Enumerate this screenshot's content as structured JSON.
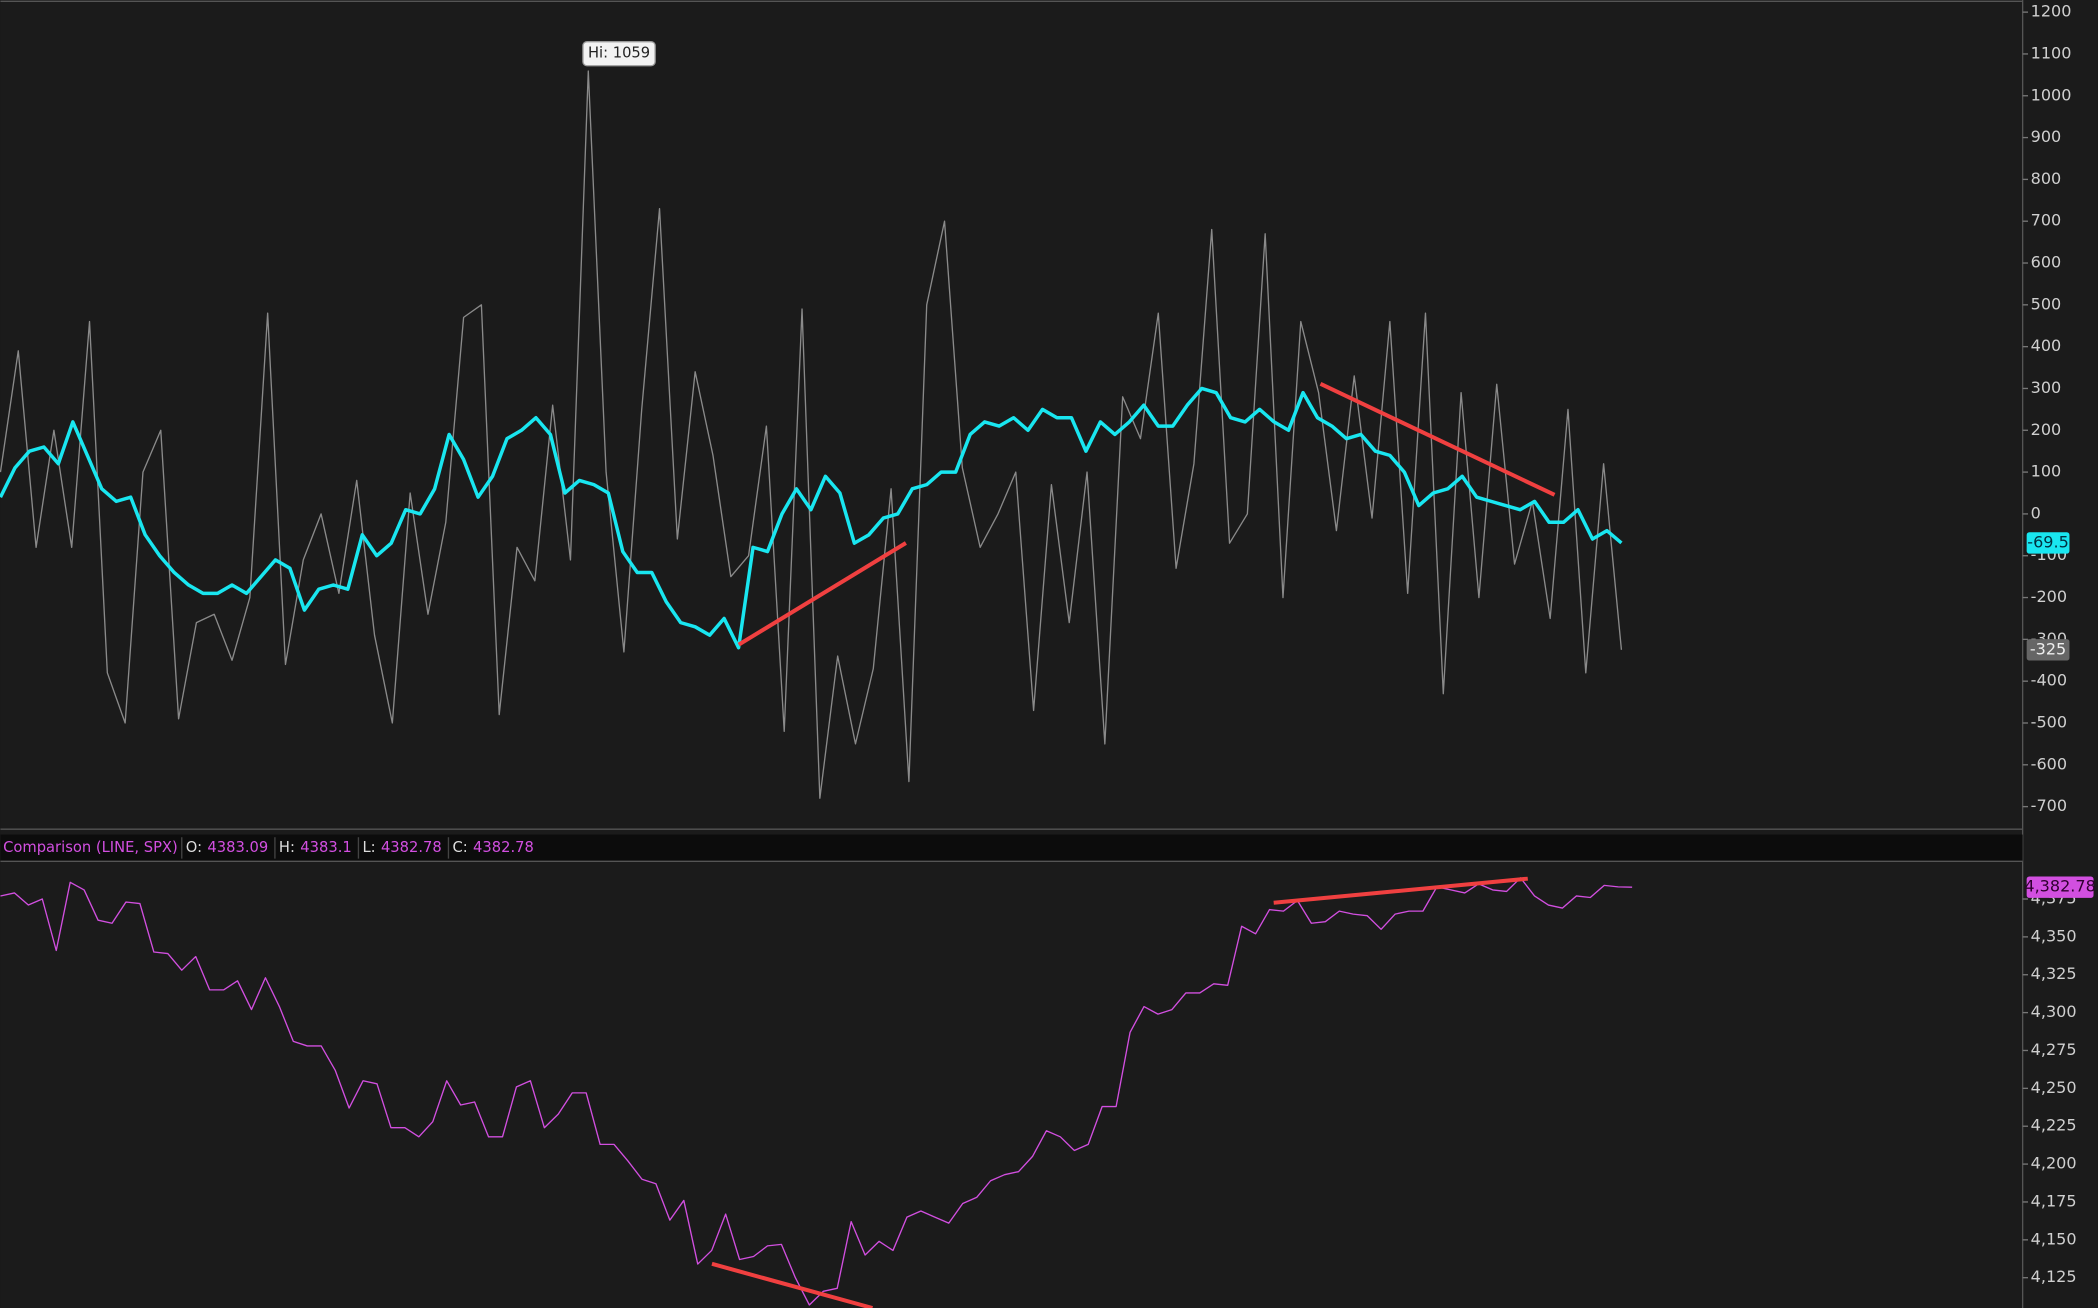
{
  "chart_data": [
    {
      "type": "line",
      "annotations": [
        {
          "text": "Hi: 1059"
        }
      ],
      "ylim": [
        -754,
        1229
      ],
      "yticks": [
        1200,
        1100,
        1000,
        900,
        800,
        700,
        600,
        500,
        400,
        300,
        200,
        100,
        0,
        -100,
        -200,
        -300,
        -400,
        -500,
        -600,
        -700
      ],
      "series": [
        {
          "color": "#8a8a8a",
          "values": [
            100,
            390,
            -80,
            200,
            -80,
            460,
            -380,
            -500,
            100,
            200,
            -490,
            -260,
            -240,
            -350,
            -200,
            480,
            -360,
            -110,
            0,
            -190,
            80,
            -290,
            -500,
            50,
            -240,
            -20,
            470,
            500,
            -480,
            -80,
            -160,
            260,
            -110,
            1059,
            100,
            -330,
            250,
            730,
            -60,
            340,
            140,
            -150,
            -100,
            210,
            -520,
            490,
            -680,
            -340,
            -550,
            -370,
            60,
            -640,
            500,
            700,
            110,
            -80,
            0,
            100,
            -470,
            70,
            -260,
            100,
            -550,
            280,
            180,
            480,
            -130,
            120,
            680,
            -70,
            0,
            670,
            -200,
            460,
            290,
            -40,
            330,
            -10,
            460,
            -190,
            480,
            -430,
            290,
            -200,
            310,
            -120,
            30,
            -250,
            250,
            -380,
            120,
            -325
          ]
        },
        {
          "color": "#19e6f0",
          "values": [
            40,
            110,
            150,
            160,
            120,
            220,
            140,
            60,
            30,
            40,
            -50,
            -100,
            -140,
            -170,
            -190,
            -190,
            -170,
            -190,
            -150,
            -110,
            -130,
            -230,
            -180,
            -170,
            -180,
            -50,
            -100,
            -70,
            10,
            0,
            60,
            190,
            130,
            40,
            90,
            180,
            200,
            230,
            190,
            50,
            80,
            70,
            50,
            -90,
            -140,
            -140,
            -210,
            -260,
            -270,
            -290,
            -250,
            -320,
            -80,
            -90,
            0,
            60,
            10,
            90,
            50,
            -70,
            -50,
            -10,
            0,
            60,
            70,
            100,
            100,
            190,
            220,
            210,
            230,
            200,
            250,
            230,
            230,
            150,
            220,
            190,
            220,
            260,
            210,
            210,
            260,
            300,
            290,
            230,
            220,
            250,
            220,
            200,
            290,
            230,
            210,
            180,
            190,
            150,
            140,
            100,
            20,
            50,
            60,
            90,
            40,
            30,
            20,
            10,
            30,
            -20,
            -20,
            10,
            -60,
            -40,
            -69.5
          ]
        }
      ]
    },
    {
      "type": "line",
      "title": "Comparison (LINE, SPX)",
      "ohlc": [
        {
          "label": "O:",
          "value": 4383.09
        },
        {
          "label": "H:",
          "value": 4383.1
        },
        {
          "label": "L:",
          "value": 4382.78
        },
        {
          "label": "C:",
          "value": 4382.78
        }
      ],
      "ylim": [
        4105,
        4399
      ],
      "yticks": [
        {
          "value": 4375,
          "label": "4,375"
        },
        {
          "value": 4350,
          "label": "4,350"
        },
        {
          "value": 4325,
          "label": "4,325"
        },
        {
          "value": 4300,
          "label": "4,300"
        },
        {
          "value": 4275,
          "label": "4,275"
        },
        {
          "value": 4250,
          "label": "4,250"
        },
        {
          "value": 4225,
          "label": "4,225"
        },
        {
          "value": 4200,
          "label": "4,200"
        },
        {
          "value": 4175,
          "label": "4,175"
        },
        {
          "value": 4150,
          "label": "4,150"
        },
        {
          "value": 4125,
          "label": "4,125"
        }
      ],
      "price_tag": {
        "value": 4382.78,
        "label": "4,382.78"
      },
      "series": [
        {
          "color": "#d24fe0",
          "values": [
            4377,
            4379,
            4371,
            4375,
            4341,
            4386,
            4381,
            4361,
            4359,
            4373,
            4372,
            4340,
            4339,
            4328,
            4337,
            4315,
            4315,
            4321,
            4302,
            4323,
            4304,
            4281,
            4278,
            4278,
            4262,
            4237,
            4255,
            4253,
            4224,
            4224,
            4218,
            4228,
            4255,
            4239,
            4241,
            4218,
            4218,
            4251,
            4255,
            4224,
            4233,
            4247,
            4247,
            4213,
            4213,
            4202,
            4190,
            4187,
            4163,
            4176,
            4134,
            4143,
            4167,
            4137,
            4139,
            4146,
            4147,
            4125,
            4107,
            4116,
            4118,
            4162,
            4140,
            4149,
            4143,
            4165,
            4169,
            4165,
            4161,
            4174,
            4178,
            4189,
            4193,
            4195,
            4205,
            4222,
            4218,
            4209,
            4213,
            4238,
            4238,
            4287,
            4304,
            4299,
            4302,
            4313,
            4313,
            4319,
            4318,
            4357,
            4352,
            4368,
            4367,
            4374,
            4359,
            4360,
            4367,
            4365,
            4364,
            4355,
            4365,
            4367,
            4367,
            4383,
            4381,
            4379,
            4385,
            4381,
            4380,
            4389,
            4377,
            4371,
            4369,
            4377,
            4376,
            4384,
            4383,
            4382.78
          ]
        }
      ]
    }
  ]
}
